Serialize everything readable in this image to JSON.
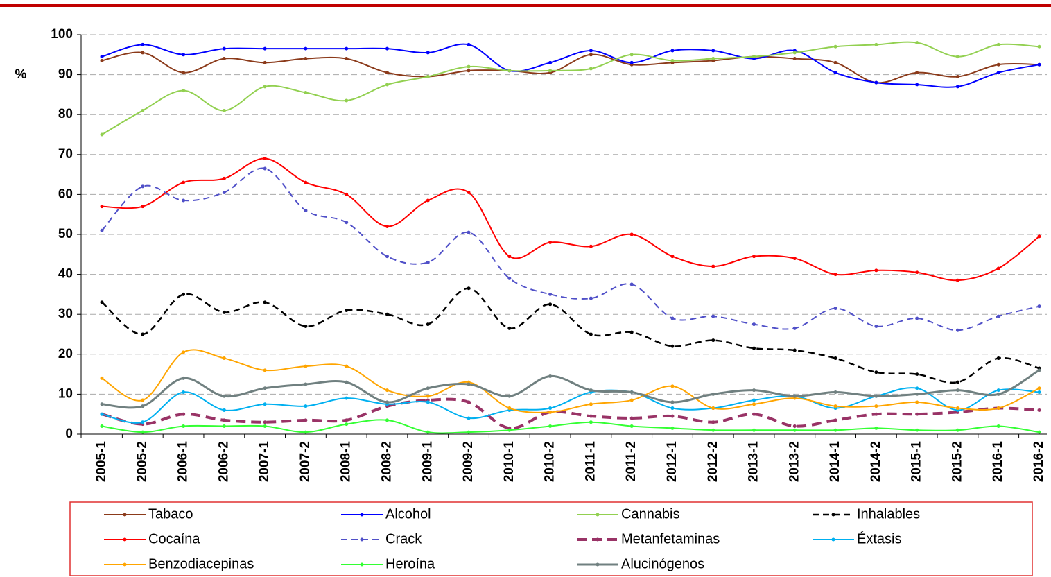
{
  "chart_data": {
    "type": "line",
    "ylabel": "%",
    "categories": [
      "2005-1",
      "2005-2",
      "2006-1",
      "2006-2",
      "2007-1",
      "2007-2",
      "2008-1",
      "2008-2",
      "2009-1",
      "2009-2",
      "2010-1",
      "2010-2",
      "2011-1",
      "2011-2",
      "2012-1",
      "2012-2",
      "2013-1",
      "2013-2",
      "2014-1",
      "2014-2",
      "2015-1",
      "2015-2",
      "2016-1",
      "2016-2"
    ],
    "ylim": [
      0,
      100
    ],
    "yticks": [
      0,
      10,
      20,
      30,
      40,
      50,
      60,
      70,
      80,
      90,
      100
    ],
    "grid": true,
    "series": [
      {
        "name": "Tabaco",
        "color": "#8b3a1a",
        "line_style": "solid",
        "line_width": 2,
        "values": [
          93.5,
          95.5,
          90.5,
          94,
          93,
          94,
          94,
          90.5,
          89.5,
          91,
          91,
          90.5,
          95,
          92.5,
          93,
          93.5,
          94.5,
          94,
          93,
          88,
          90.5,
          89.5,
          92.5,
          92.5
        ]
      },
      {
        "name": "Alcohol",
        "color": "#0000ff",
        "line_style": "solid",
        "line_width": 2,
        "values": [
          94.5,
          97.5,
          95,
          96.5,
          96.5,
          96.5,
          96.5,
          96.5,
          95.5,
          97.5,
          91,
          93,
          96,
          93,
          96,
          96,
          94,
          96,
          90.5,
          88,
          87.5,
          87,
          90.5,
          92.5
        ]
      },
      {
        "name": "Cannabis",
        "color": "#92d050",
        "line_style": "solid",
        "line_width": 2,
        "values": [
          75,
          81,
          86,
          81,
          87,
          85.5,
          83.5,
          87.5,
          89.5,
          92,
          91,
          91,
          91.5,
          95,
          93.5,
          94,
          94.5,
          95.5,
          97,
          97.5,
          98,
          94.5,
          97.5,
          97
        ]
      },
      {
        "name": "Inhalables",
        "color": "#000000",
        "line_style": "dashed",
        "line_width": 2.5,
        "values": [
          33,
          25,
          35,
          30.5,
          33,
          27,
          31,
          30,
          27.5,
          36.5,
          26.5,
          32.5,
          25,
          25.5,
          22,
          23.5,
          21.5,
          21,
          19,
          15.5,
          15,
          13,
          19,
          16.5
        ]
      },
      {
        "name": "Cocaína",
        "color": "#ff0000",
        "line_style": "solid",
        "line_width": 2,
        "values": [
          57,
          57,
          63,
          64,
          69,
          63,
          60,
          52,
          58.5,
          60.5,
          44.5,
          48,
          47,
          50,
          44.5,
          42,
          44.5,
          44,
          40,
          41,
          40.5,
          38.5,
          41.5,
          49.5
        ]
      },
      {
        "name": "Crack",
        "color": "#5050c8",
        "line_style": "dashed",
        "line_width": 2,
        "values": [
          51,
          62,
          58.5,
          60.5,
          66.5,
          56,
          53,
          44.5,
          43,
          50.5,
          39,
          35,
          34,
          37.5,
          29,
          29.5,
          27.5,
          26.5,
          31.5,
          27,
          29,
          26,
          29.5,
          32
        ]
      },
      {
        "name": "Metanfetaminas",
        "color": "#993366",
        "line_style": "dashed",
        "line_width": 4,
        "values": [
          5,
          2.5,
          5,
          3.5,
          3,
          3.5,
          3.5,
          7,
          8.5,
          8,
          1.5,
          5.5,
          4.5,
          4,
          4.5,
          3,
          5,
          2,
          3.5,
          5,
          5,
          5.5,
          6.5,
          6
        ]
      },
      {
        "name": "Éxtasis",
        "color": "#00b0f0",
        "line_style": "solid",
        "line_width": 2,
        "values": [
          5,
          3,
          10.5,
          6,
          7.5,
          7,
          9,
          7.5,
          8,
          4,
          6,
          6.5,
          10.5,
          10.5,
          6.5,
          6.5,
          8.5,
          9.5,
          6.5,
          9.5,
          11.5,
          6,
          11,
          10.5
        ]
      },
      {
        "name": "Benzodiacepinas",
        "color": "#ffa500",
        "line_style": "solid",
        "line_width": 2,
        "values": [
          14,
          8.5,
          20.5,
          19,
          16,
          17,
          17,
          11,
          9.5,
          13,
          6.5,
          5.5,
          7.5,
          8.5,
          12,
          6.5,
          7.5,
          9,
          7,
          7,
          8,
          6.5,
          6.5,
          11.5
        ]
      },
      {
        "name": "Heroína",
        "color": "#33ff33",
        "line_style": "solid",
        "line_width": 2,
        "values": [
          2,
          0.5,
          2,
          2,
          2,
          0.5,
          2.5,
          3.5,
          0.5,
          0.5,
          1,
          2,
          3,
          2,
          1.5,
          1,
          1,
          1,
          1,
          1.5,
          1,
          1,
          2,
          0.5
        ]
      },
      {
        "name": "Alucinógenos",
        "color": "#708080",
        "line_style": "solid",
        "line_width": 3,
        "values": [
          7.5,
          7,
          14,
          9.5,
          11.5,
          12.5,
          13,
          8,
          11.5,
          12.5,
          9.5,
          14.5,
          11,
          10.5,
          8,
          10,
          11,
          9.5,
          10.5,
          9.5,
          10,
          11,
          10,
          16
        ]
      }
    ]
  }
}
